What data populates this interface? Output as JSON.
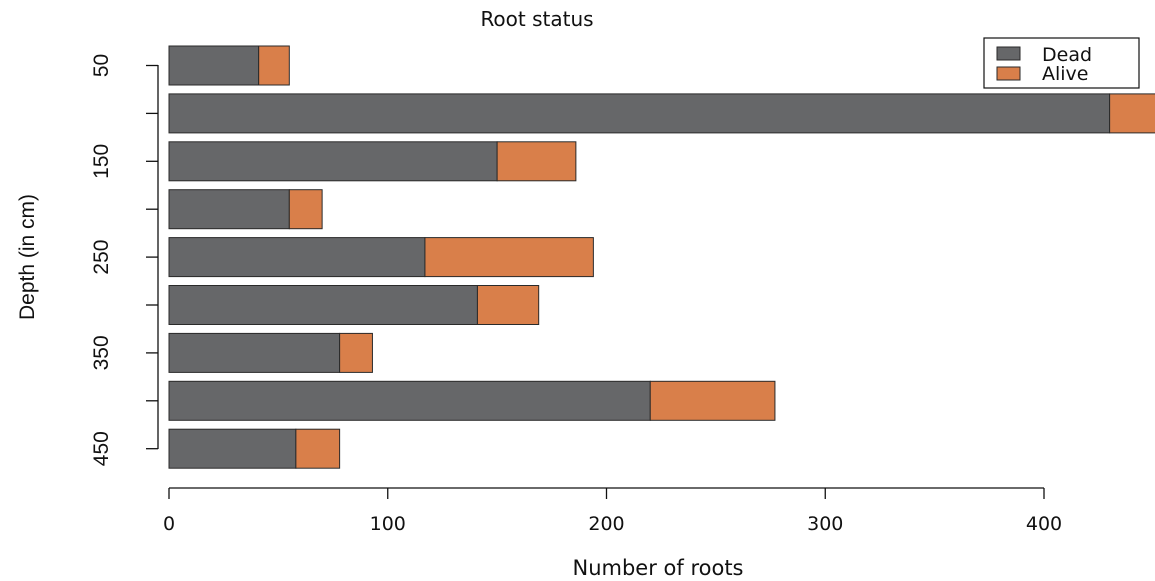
{
  "chart_data": {
    "type": "bar",
    "orientation": "horizontal",
    "stacked": true,
    "title": "Root status",
    "xlabel": "Number of roots",
    "ylabel": "Depth (in cm)",
    "categories": [
      "50",
      "100",
      "150",
      "200",
      "250",
      "300",
      "350",
      "400",
      "450"
    ],
    "shown_category_labels": [
      "50",
      "",
      "150",
      "",
      "250",
      "",
      "350",
      "",
      "450"
    ],
    "xlim": [
      0,
      450
    ],
    "xticks": [
      0,
      100,
      200,
      300,
      400
    ],
    "grid": false,
    "legend_position": "top-right",
    "series": [
      {
        "name": "Dead",
        "color": "#666769",
        "values": [
          41,
          430,
          150,
          55,
          117,
          141,
          78,
          220,
          58
        ]
      },
      {
        "name": "Alive",
        "color": "#d97f4a",
        "values": [
          14,
          24,
          36,
          15,
          77,
          28,
          15,
          57,
          20
        ]
      }
    ]
  }
}
